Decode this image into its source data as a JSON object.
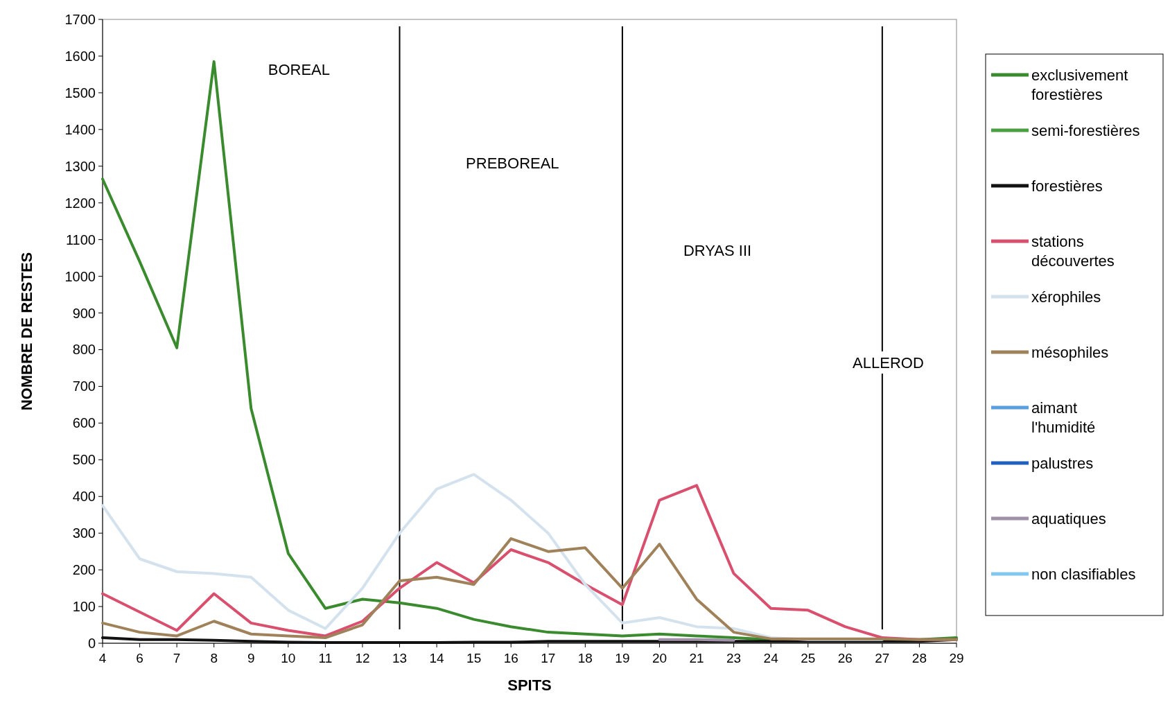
{
  "chart_data": {
    "type": "line",
    "xlabel": "SPITS",
    "ylabel": "NOMBRE DE RESTES",
    "categories": [
      "4",
      "6",
      "7",
      "8",
      "9",
      "10",
      "11",
      "12",
      "13",
      "14",
      "15",
      "16",
      "17",
      "18",
      "19",
      "20",
      "21",
      "23",
      "24",
      "25",
      "26",
      "27",
      "28",
      "29"
    ],
    "ylim": [
      0,
      1700
    ],
    "yticks": [
      0,
      100,
      200,
      300,
      400,
      500,
      600,
      700,
      800,
      900,
      1000,
      1100,
      1200,
      1300,
      1400,
      1500,
      1600,
      1700
    ],
    "grid": false,
    "legend": "right",
    "marker": "none",
    "line_style": "solid",
    "series": [
      {
        "name": "exclusivement forestières",
        "color": "#3a8a2e",
        "values": [
          1265,
          1040,
          805,
          1585,
          640,
          245,
          95,
          120,
          110,
          95,
          65,
          45,
          30,
          25,
          20,
          25,
          20,
          15,
          10,
          10,
          10,
          10,
          10,
          15
        ]
      },
      {
        "name": "semi-forestières",
        "color": "#4aa040",
        "values": [
          null,
          null,
          null,
          null,
          null,
          null,
          null,
          null,
          null,
          null,
          null,
          null,
          null,
          null,
          null,
          null,
          null,
          null,
          null,
          null,
          null,
          null,
          null,
          null
        ]
      },
      {
        "name": "forestières",
        "color": "#111111",
        "values": [
          15,
          10,
          10,
          8,
          5,
          3,
          2,
          2,
          2,
          2,
          3,
          3,
          5,
          5,
          5,
          5,
          5,
          5,
          5,
          5,
          5,
          5,
          5,
          10
        ]
      },
      {
        "name": "stations découvertes",
        "color": "#d9506e",
        "values": [
          135,
          85,
          35,
          135,
          55,
          35,
          20,
          60,
          150,
          220,
          165,
          255,
          220,
          160,
          105,
          390,
          430,
          190,
          95,
          90,
          45,
          15,
          10,
          10
        ]
      },
      {
        "name": "xérophiles",
        "color": "#d4e2ee",
        "values": [
          375,
          230,
          195,
          190,
          180,
          90,
          40,
          150,
          300,
          420,
          460,
          390,
          300,
          160,
          55,
          70,
          45,
          40,
          15,
          10,
          10,
          10,
          null,
          null
        ]
      },
      {
        "name": "mésophiles",
        "color": "#a0825a",
        "values": [
          55,
          30,
          20,
          60,
          25,
          20,
          15,
          50,
          170,
          180,
          160,
          285,
          250,
          260,
          150,
          270,
          120,
          30,
          12,
          12,
          12,
          12,
          10,
          10
        ]
      },
      {
        "name": "aimant l'humidité",
        "color": "#5aa0e0",
        "values": [
          null,
          null,
          null,
          null,
          null,
          null,
          null,
          null,
          null,
          null,
          null,
          null,
          null,
          null,
          null,
          null,
          null,
          null,
          null,
          null,
          null,
          null,
          null,
          null
        ]
      },
      {
        "name": "palustres",
        "color": "#2060c0",
        "values": [
          null,
          null,
          null,
          null,
          null,
          null,
          null,
          null,
          null,
          null,
          null,
          null,
          null,
          null,
          null,
          null,
          null,
          null,
          null,
          null,
          null,
          null,
          null,
          null
        ]
      },
      {
        "name": "aquatiques",
        "color": "#a090a8",
        "values": [
          null,
          null,
          null,
          null,
          null,
          null,
          null,
          null,
          null,
          null,
          null,
          null,
          null,
          null,
          null,
          10,
          10,
          8,
          null,
          null,
          null,
          null,
          null,
          null
        ]
      },
      {
        "name": "non clasifiables",
        "color": "#80c8f0",
        "values": [
          null,
          null,
          null,
          null,
          null,
          null,
          null,
          null,
          null,
          null,
          null,
          null,
          null,
          null,
          null,
          null,
          null,
          null,
          null,
          null,
          null,
          null,
          null,
          null
        ]
      }
    ],
    "ref_lines": [
      {
        "axis": "x",
        "value": "13",
        "color": "#000000"
      },
      {
        "axis": "x",
        "value": "19",
        "color": "#000000"
      },
      {
        "axis": "x",
        "value": "27",
        "color": "#000000"
      }
    ],
    "annotations": [
      "BOREAL",
      "PREBOREAL",
      "DRYAS III",
      "ALLEROD"
    ]
  }
}
